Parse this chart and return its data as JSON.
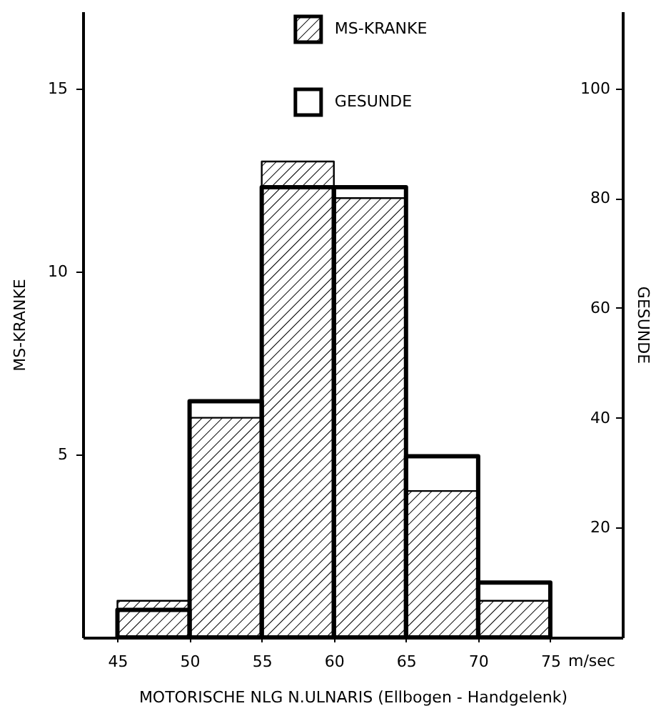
{
  "chart_data": {
    "type": "histogram",
    "xlabel": "MOTORISCHE NLG N.ULNARIS (Ellbogen - Handgelenk)",
    "ylabel": "MS-KRANKE",
    "y2label": "GESUNDE",
    "annotations": [
      "m/sec"
    ],
    "bins": [
      45,
      50,
      55,
      60,
      65,
      70,
      75
    ],
    "series": [
      {
        "name": "MS-KRANKE",
        "color": "#000000",
        "values": [
          1,
          6,
          13,
          12,
          4,
          1
        ]
      },
      {
        "name": "GESUNDE",
        "color": "#000000",
        "values": [
          5,
          43,
          82,
          82,
          33,
          10
        ],
        "axis": "y2"
      }
    ],
    "xlim": [
      42.6,
      80
    ],
    "xticks": [
      45,
      50,
      55,
      60,
      65,
      70,
      75
    ],
    "ylim": [
      0,
      17.1
    ],
    "yticks": [
      5,
      10,
      15
    ],
    "y2lim": [
      0,
      114
    ],
    "y2ticks": [
      20,
      40,
      60,
      80,
      100
    ],
    "legend": "top",
    "grid": false
  }
}
